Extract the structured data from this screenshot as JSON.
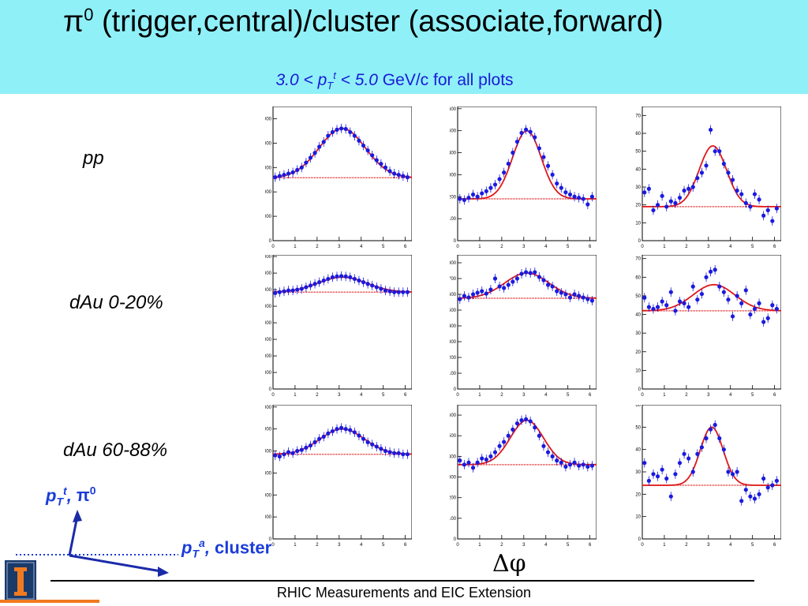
{
  "header": {
    "title": "π0 (trigger,central)/cluster (associate,forward)",
    "title_main": "π",
    "title_sup": "0",
    "title_rest": " (trigger,central)/cluster (associate,forward)",
    "subtitle_italic": "3.0 < pT t < 5.0",
    "subtitle_rest": " GeV/c for all plots",
    "background_color": "#8ff0f8",
    "subtitle_color": "#1a1ad8"
  },
  "rows": [
    {
      "label": "pp"
    },
    {
      "label": "dAu 0-20%"
    },
    {
      "label": "dAu 60-88%"
    }
  ],
  "axes_annotation": {
    "trigger_label": "pT t, π0",
    "assoc_label": "pT a, cluster",
    "color": "#1a3cd8"
  },
  "x_axis_symbol": "Δφ",
  "footer": "RHIC Measurements and EIC Extension",
  "colors": {
    "data": "#1a1ae0",
    "fit": "#e01818",
    "baseline": "#e01818"
  },
  "chart_data": [
    {
      "type": "scatter",
      "row": "pp",
      "col": 1,
      "xlim": [
        0,
        6.3
      ],
      "ylim": [
        0,
        5500
      ],
      "xticks": [
        0,
        1,
        2,
        3,
        4,
        5,
        6
      ],
      "yticks": [
        0,
        1000,
        2000,
        3000,
        4000,
        5000
      ],
      "x": [
        0.1,
        0.3,
        0.5,
        0.7,
        0.9,
        1.1,
        1.3,
        1.5,
        1.7,
        1.9,
        2.1,
        2.3,
        2.5,
        2.7,
        2.9,
        3.1,
        3.3,
        3.5,
        3.7,
        3.9,
        4.1,
        4.3,
        4.5,
        4.7,
        4.9,
        5.1,
        5.3,
        5.5,
        5.7,
        5.9,
        6.1
      ],
      "y": [
        2600,
        2650,
        2700,
        2750,
        2800,
        2900,
        3000,
        3200,
        3400,
        3600,
        3850,
        4050,
        4300,
        4450,
        4550,
        4600,
        4580,
        4450,
        4300,
        4100,
        3900,
        3700,
        3500,
        3300,
        3150,
        3000,
        2850,
        2750,
        2700,
        2650,
        2600
      ],
      "fit": {
        "baseline": 2580,
        "amplitude": 2020,
        "center": 3.14,
        "sigma": 1.05
      }
    },
    {
      "type": "scatter",
      "row": "pp",
      "col": 2,
      "xlim": [
        0,
        6.3
      ],
      "ylim": [
        0,
        610
      ],
      "xticks": [
        0,
        1,
        2,
        3,
        4,
        5,
        6
      ],
      "yticks": [
        0,
        100,
        200,
        300,
        400,
        500,
        600
      ],
      "x": [
        0.1,
        0.3,
        0.5,
        0.7,
        0.9,
        1.1,
        1.3,
        1.5,
        1.7,
        1.9,
        2.1,
        2.3,
        2.5,
        2.7,
        2.9,
        3.1,
        3.3,
        3.5,
        3.7,
        3.9,
        4.1,
        4.3,
        4.5,
        4.7,
        4.9,
        5.1,
        5.3,
        5.5,
        5.7,
        5.9,
        6.1
      ],
      "y": [
        190,
        185,
        195,
        210,
        200,
        215,
        225,
        240,
        255,
        280,
        310,
        350,
        400,
        450,
        490,
        505,
        495,
        470,
        420,
        380,
        340,
        300,
        260,
        240,
        220,
        210,
        200,
        195,
        190,
        165,
        200
      ],
      "fit": {
        "baseline": 190,
        "amplitude": 310,
        "center": 3.14,
        "sigma": 0.65
      }
    },
    {
      "type": "scatter",
      "row": "pp",
      "col": 3,
      "xlim": [
        0,
        6.3
      ],
      "ylim": [
        0,
        75
      ],
      "xticks": [
        0,
        1,
        2,
        3,
        4,
        5,
        6
      ],
      "yticks": [
        0,
        10,
        20,
        30,
        40,
        50,
        60,
        70
      ],
      "x": [
        0.1,
        0.3,
        0.5,
        0.7,
        0.9,
        1.1,
        1.3,
        1.5,
        1.7,
        1.9,
        2.1,
        2.3,
        2.5,
        2.7,
        2.9,
        3.1,
        3.3,
        3.5,
        3.7,
        3.9,
        4.1,
        4.3,
        4.5,
        4.7,
        4.9,
        5.1,
        5.3,
        5.5,
        5.7,
        5.9,
        6.1
      ],
      "y": [
        27,
        29,
        17,
        20,
        25,
        19,
        22,
        21,
        24,
        28,
        29,
        30,
        35,
        38,
        42,
        62,
        50,
        50,
        43,
        38,
        34,
        28,
        26,
        21,
        19,
        26,
        23,
        14,
        17,
        11,
        18
      ],
      "fit": {
        "baseline": 19,
        "amplitude": 34,
        "center": 3.2,
        "sigma": 0.62
      }
    },
    {
      "type": "scatter",
      "row": "dAu 0-20%",
      "col": 1,
      "xlim": [
        0,
        6.3
      ],
      "ylim": [
        0,
        8100
      ],
      "xticks": [
        0,
        1,
        2,
        3,
        4,
        5,
        6
      ],
      "yticks": [
        0,
        1000,
        2000,
        3000,
        4000,
        5000,
        6000,
        7000,
        8000
      ],
      "x": [
        0.1,
        0.3,
        0.5,
        0.7,
        0.9,
        1.1,
        1.3,
        1.5,
        1.7,
        1.9,
        2.1,
        2.3,
        2.5,
        2.7,
        2.9,
        3.1,
        3.3,
        3.5,
        3.7,
        3.9,
        4.1,
        4.3,
        4.5,
        4.7,
        4.9,
        5.1,
        5.3,
        5.5,
        5.7,
        5.9,
        6.1
      ],
      "y": [
        5800,
        5850,
        5900,
        5950,
        5950,
        6000,
        6050,
        6150,
        6250,
        6350,
        6450,
        6550,
        6650,
        6750,
        6800,
        6820,
        6800,
        6750,
        6650,
        6550,
        6450,
        6350,
        6250,
        6150,
        6050,
        5950,
        5900,
        5850,
        5850,
        5850,
        5850
      ],
      "fit": {
        "baseline": 5850,
        "amplitude": 900,
        "center": 3.14,
        "sigma": 1.1
      }
    },
    {
      "type": "scatter",
      "row": "dAu 0-20%",
      "col": 2,
      "xlim": [
        0,
        6.3
      ],
      "ylim": [
        0,
        850
      ],
      "xticks": [
        0,
        1,
        2,
        3,
        4,
        5,
        6
      ],
      "yticks": [
        0,
        100,
        200,
        300,
        400,
        500,
        600,
        700,
        800
      ],
      "x": [
        0.1,
        0.3,
        0.5,
        0.7,
        0.9,
        1.1,
        1.3,
        1.5,
        1.7,
        1.9,
        2.1,
        2.3,
        2.5,
        2.7,
        2.9,
        3.1,
        3.3,
        3.5,
        3.7,
        3.9,
        4.1,
        4.3,
        4.5,
        4.7,
        4.9,
        5.1,
        5.3,
        5.5,
        5.7,
        5.9,
        6.1
      ],
      "y": [
        570,
        590,
        580,
        600,
        610,
        620,
        605,
        630,
        700,
        650,
        640,
        660,
        680,
        700,
        730,
        740,
        735,
        740,
        710,
        690,
        660,
        650,
        620,
        610,
        600,
        580,
        600,
        590,
        580,
        570,
        560
      ],
      "fit": {
        "baseline": 575,
        "amplitude": 160,
        "center": 3.14,
        "sigma": 1.0
      }
    },
    {
      "type": "scatter",
      "row": "dAu 0-20%",
      "col": 3,
      "xlim": [
        0,
        6.3
      ],
      "ylim": [
        0,
        72
      ],
      "xticks": [
        0,
        1,
        2,
        3,
        4,
        5,
        6
      ],
      "yticks": [
        0,
        10,
        20,
        30,
        40,
        50,
        60,
        70
      ],
      "x": [
        0.1,
        0.3,
        0.5,
        0.7,
        0.9,
        1.1,
        1.3,
        1.5,
        1.7,
        1.9,
        2.1,
        2.3,
        2.5,
        2.7,
        2.9,
        3.1,
        3.3,
        3.5,
        3.7,
        3.9,
        4.1,
        4.3,
        4.5,
        4.7,
        4.9,
        5.1,
        5.3,
        5.5,
        5.7,
        5.9,
        6.1
      ],
      "y": [
        49,
        44,
        43,
        44,
        47,
        45,
        52,
        42,
        47,
        46,
        44,
        55,
        48,
        51,
        60,
        63,
        64,
        55,
        52,
        48,
        39,
        50,
        46,
        53,
        40,
        43,
        46,
        36,
        38,
        45,
        43
      ],
      "fit": {
        "baseline": 42,
        "amplitude": 14,
        "center": 3.25,
        "sigma": 0.95
      }
    },
    {
      "type": "scatter",
      "row": "dAu 60-88%",
      "col": 1,
      "xlim": [
        0,
        6.3
      ],
      "ylim": [
        0,
        6100
      ],
      "xticks": [
        0,
        1,
        2,
        3,
        4,
        5,
        6
      ],
      "yticks": [
        0,
        1000,
        2000,
        3000,
        4000,
        5000,
        6000
      ],
      "x": [
        0.1,
        0.3,
        0.5,
        0.7,
        0.9,
        1.1,
        1.3,
        1.5,
        1.7,
        1.9,
        2.1,
        2.3,
        2.5,
        2.7,
        2.9,
        3.1,
        3.3,
        3.5,
        3.7,
        3.9,
        4.1,
        4.3,
        4.5,
        4.7,
        4.9,
        5.1,
        5.3,
        5.5,
        5.7,
        5.9,
        6.1
      ],
      "y": [
        3800,
        3750,
        3850,
        3950,
        3900,
        4000,
        4050,
        4150,
        4250,
        4400,
        4550,
        4650,
        4800,
        4900,
        5000,
        5050,
        5000,
        4950,
        4850,
        4700,
        4550,
        4400,
        4300,
        4200,
        4100,
        4000,
        3950,
        3900,
        3900,
        3850,
        3850
      ],
      "fit": {
        "baseline": 3850,
        "amplitude": 1150,
        "center": 3.14,
        "sigma": 1.0
      }
    },
    {
      "type": "scatter",
      "row": "dAu 60-88%",
      "col": 2,
      "xlim": [
        0,
        6.3
      ],
      "ylim": [
        0,
        650
      ],
      "xticks": [
        0,
        1,
        2,
        3,
        4,
        5,
        6
      ],
      "yticks": [
        0,
        100,
        200,
        300,
        400,
        500,
        600
      ],
      "x": [
        0.1,
        0.3,
        0.5,
        0.7,
        0.9,
        1.1,
        1.3,
        1.5,
        1.7,
        1.9,
        2.1,
        2.3,
        2.5,
        2.7,
        2.9,
        3.1,
        3.3,
        3.5,
        3.7,
        3.9,
        4.1,
        4.3,
        4.5,
        4.7,
        4.9,
        5.1,
        5.3,
        5.5,
        5.7,
        5.9,
        6.1
      ],
      "y": [
        380,
        360,
        370,
        345,
        370,
        390,
        385,
        400,
        420,
        450,
        470,
        500,
        530,
        560,
        575,
        580,
        570,
        540,
        500,
        450,
        420,
        400,
        380,
        370,
        350,
        360,
        370,
        355,
        360,
        350,
        355
      ],
      "fit": {
        "baseline": 360,
        "amplitude": 215,
        "center": 3.14,
        "sigma": 0.75
      }
    },
    {
      "type": "scatter",
      "row": "dAu 60-88%",
      "col": 3,
      "xlim": [
        0,
        6.3
      ],
      "ylim": [
        0,
        60
      ],
      "xticks": [
        0,
        1,
        2,
        3,
        4,
        5,
        6
      ],
      "yticks": [
        0,
        10,
        20,
        30,
        40,
        50,
        60
      ],
      "x": [
        0.1,
        0.3,
        0.5,
        0.7,
        0.9,
        1.1,
        1.3,
        1.5,
        1.7,
        1.9,
        2.1,
        2.3,
        2.5,
        2.7,
        2.9,
        3.1,
        3.3,
        3.5,
        3.7,
        3.9,
        4.1,
        4.3,
        4.5,
        4.7,
        4.9,
        5.1,
        5.3,
        5.5,
        5.7,
        5.9,
        6.1
      ],
      "y": [
        34,
        26,
        29,
        28,
        31,
        27,
        19,
        29,
        34,
        38,
        36,
        30,
        38,
        41,
        45,
        49,
        51,
        45,
        40,
        30,
        29,
        30,
        17,
        22,
        19,
        18,
        20,
        27,
        23,
        24,
        26
      ],
      "fit": {
        "baseline": 24,
        "amplitude": 26,
        "center": 3.15,
        "sigma": 0.52
      }
    }
  ]
}
